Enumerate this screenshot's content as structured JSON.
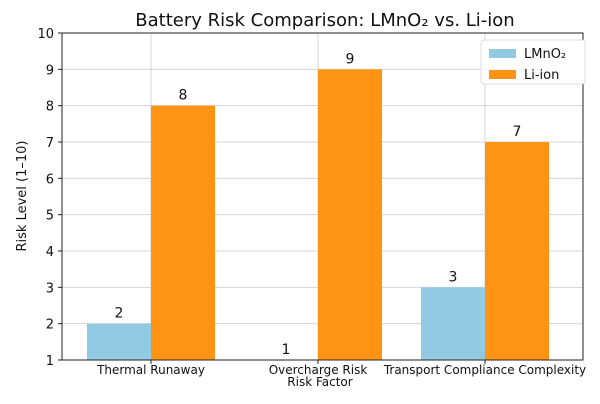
{
  "chart_data": {
    "type": "bar",
    "title": "Battery Risk Comparison: LMnO₂ vs. Li-ion",
    "xlabel": "Risk Factor",
    "ylabel": "Risk Level (1–10)",
    "ylim": [
      1,
      10
    ],
    "yticks": [
      1,
      2,
      3,
      4,
      5,
      6,
      7,
      8,
      9,
      10
    ],
    "categories": [
      "Thermal Runaway",
      "Overcharge Risk",
      "Transport Compliance Complexity"
    ],
    "grid": true,
    "legend_position": "top-right",
    "series": [
      {
        "name": "LMnO₂",
        "values": [
          2,
          1,
          3
        ],
        "color": "#92c9e3"
      },
      {
        "name": "Li-ion",
        "values": [
          8,
          9,
          7
        ],
        "color": "#ff9414"
      }
    ]
  }
}
